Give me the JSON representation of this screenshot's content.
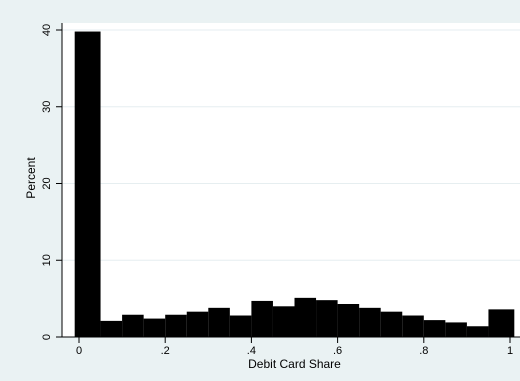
{
  "chart_data": {
    "type": "bar",
    "title": "",
    "xlabel": "Debit Card Share",
    "ylabel": "Percent",
    "xlim": [
      0,
      1
    ],
    "ylim": [
      0,
      40
    ],
    "grid": true,
    "x_ticks": [
      {
        "value": 0,
        "label": "0"
      },
      {
        "value": 0.2,
        "label": ".2"
      },
      {
        "value": 0.4,
        "label": ".4"
      },
      {
        "value": 0.6,
        "label": ".6"
      },
      {
        "value": 0.8,
        "label": ".8"
      },
      {
        "value": 1,
        "label": "1"
      }
    ],
    "y_ticks": [
      {
        "value": 0,
        "label": "0"
      },
      {
        "value": 10,
        "label": "10"
      },
      {
        "value": 20,
        "label": "20"
      },
      {
        "value": 30,
        "label": "30"
      },
      {
        "value": 40,
        "label": "40"
      }
    ],
    "bin_width": 0.05,
    "bins": [
      {
        "start": -0.01,
        "end": 0.05,
        "value": 39.8
      },
      {
        "start": 0.05,
        "end": 0.1,
        "value": 2.1
      },
      {
        "start": 0.1,
        "end": 0.15,
        "value": 2.9
      },
      {
        "start": 0.15,
        "end": 0.2,
        "value": 2.4
      },
      {
        "start": 0.2,
        "end": 0.25,
        "value": 2.9
      },
      {
        "start": 0.25,
        "end": 0.3,
        "value": 3.3
      },
      {
        "start": 0.3,
        "end": 0.35,
        "value": 3.8
      },
      {
        "start": 0.35,
        "end": 0.4,
        "value": 2.8
      },
      {
        "start": 0.4,
        "end": 0.45,
        "value": 4.7
      },
      {
        "start": 0.45,
        "end": 0.5,
        "value": 4.0
      },
      {
        "start": 0.5,
        "end": 0.55,
        "value": 5.1
      },
      {
        "start": 0.55,
        "end": 0.6,
        "value": 4.8
      },
      {
        "start": 0.6,
        "end": 0.65,
        "value": 4.3
      },
      {
        "start": 0.65,
        "end": 0.7,
        "value": 3.8
      },
      {
        "start": 0.7,
        "end": 0.75,
        "value": 3.3
      },
      {
        "start": 0.75,
        "end": 0.8,
        "value": 2.8
      },
      {
        "start": 0.8,
        "end": 0.85,
        "value": 2.2
      },
      {
        "start": 0.85,
        "end": 0.9,
        "value": 1.9
      },
      {
        "start": 0.9,
        "end": 0.95,
        "value": 1.4
      },
      {
        "start": 0.95,
        "end": 1.01,
        "value": 3.6
      }
    ],
    "colors": {
      "bar": "#000000",
      "plot_background": "#ffffff",
      "outer_background": "#eaf2f3",
      "grid": "#e6eef0",
      "axis": "#000000"
    }
  }
}
